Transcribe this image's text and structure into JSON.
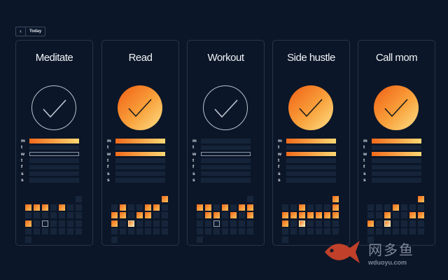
{
  "nav": {
    "back_icon": "chevron-left-icon",
    "today_label": "Today"
  },
  "day_labels": [
    "m",
    "t",
    "w",
    "t",
    "f",
    "s",
    "s"
  ],
  "colors": {
    "background": "#0b1628",
    "accent_start": "#f26a1b",
    "accent_end": "#fcd873"
  },
  "habits": [
    {
      "name": "Meditate",
      "done_today": false,
      "week": [
        "filled",
        "empty",
        "outlined",
        "empty",
        "empty",
        "empty",
        "empty"
      ],
      "history": [
        [
          0
        ],
        [
          1,
          1,
          1,
          0,
          1,
          0,
          0
        ],
        [
          0,
          0,
          0,
          0,
          0,
          0,
          0
        ],
        [
          1,
          0,
          2,
          0,
          0,
          0,
          0
        ],
        [
          0,
          0,
          0,
          0,
          0,
          0,
          0
        ],
        [
          0
        ]
      ]
    },
    {
      "name": "Read",
      "done_today": true,
      "week": [
        "filled",
        "empty",
        "filled",
        "empty",
        "empty",
        "empty",
        "empty"
      ],
      "history": [
        [
          1
        ],
        [
          0,
          1,
          0,
          0,
          1,
          1,
          0
        ],
        [
          1,
          1,
          0,
          1,
          1,
          0,
          0
        ],
        [
          1,
          0,
          3,
          0,
          0,
          0,
          0
        ],
        [
          0,
          0,
          0,
          0,
          0,
          0,
          0
        ],
        [
          0
        ]
      ]
    },
    {
      "name": "Workout",
      "done_today": false,
      "week": [
        "empty",
        "empty",
        "outlined",
        "empty",
        "empty",
        "empty",
        "empty"
      ],
      "history": [
        [
          0
        ],
        [
          1,
          1,
          0,
          1,
          0,
          1,
          1
        ],
        [
          0,
          1,
          1,
          0,
          1,
          0,
          1
        ],
        [
          0,
          0,
          2,
          0,
          0,
          0,
          0
        ],
        [
          0,
          0,
          0,
          0,
          0,
          0,
          0
        ],
        [
          0
        ]
      ]
    },
    {
      "name": "Side hustle",
      "done_today": true,
      "week": [
        "filled",
        "empty",
        "filled",
        "empty",
        "empty",
        "empty",
        "empty"
      ],
      "history": [
        [
          1
        ],
        [
          0,
          0,
          1,
          0,
          0,
          0,
          1
        ],
        [
          1,
          1,
          1,
          1,
          1,
          1,
          1
        ],
        [
          1,
          0,
          3,
          0,
          0,
          0,
          0
        ],
        [
          0,
          0,
          0,
          0,
          0,
          0,
          0
        ],
        [
          0
        ]
      ]
    },
    {
      "name": "Call mom",
      "done_today": true,
      "week": [
        "filled",
        "empty",
        "filled",
        "empty",
        "empty",
        "empty",
        "empty"
      ],
      "history": [
        [
          1
        ],
        [
          0,
          0,
          0,
          1,
          0,
          0,
          0
        ],
        [
          0,
          0,
          1,
          0,
          0,
          1,
          1
        ],
        [
          1,
          0,
          3,
          0,
          0,
          0,
          0
        ],
        [
          0,
          0,
          0,
          0,
          0,
          0,
          0
        ],
        [
          0
        ]
      ]
    }
  ],
  "watermark": {
    "cn": "网多鱼",
    "en": "wduoyu.com"
  }
}
